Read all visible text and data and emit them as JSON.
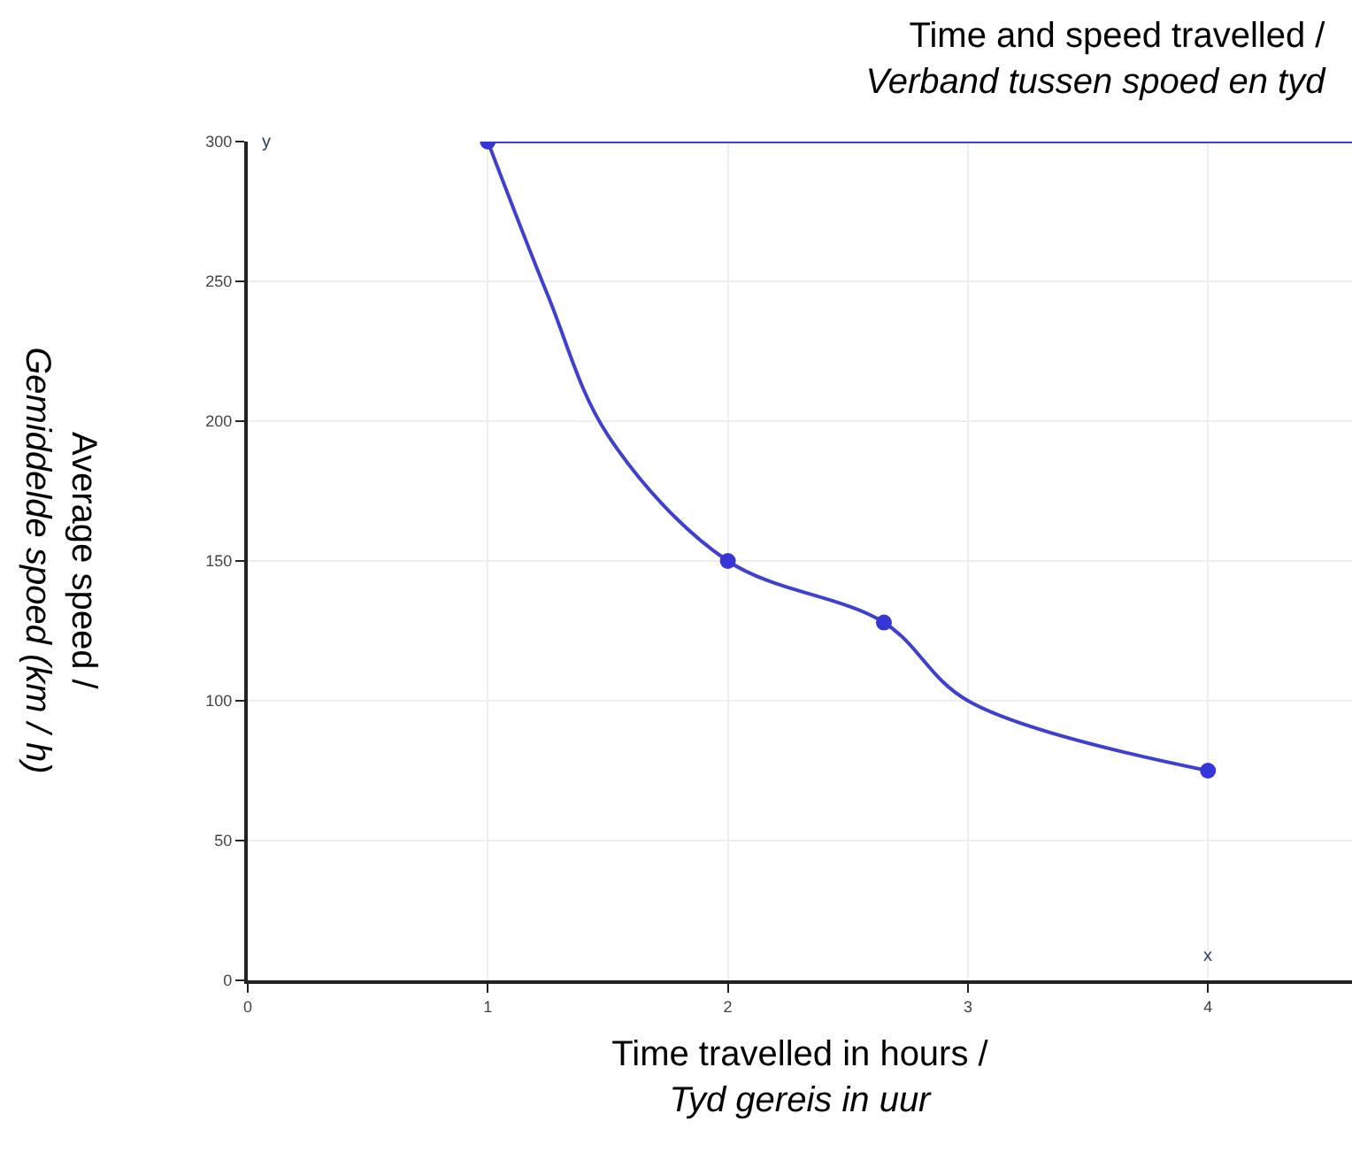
{
  "chart_data": {
    "type": "line",
    "title": "Time and speed travelled /\nVerband tussen spoed en tyd",
    "xlabel": "Time travelled in hours /\nTyd gereis in uur",
    "ylabel": "Average speed /\nGemiddelde spoed (km / h)",
    "series": [
      {
        "color": "#3f3fd0",
        "x": [
          1,
          4.6
        ],
        "values": [
          300,
          300
        ],
        "marker": "none"
      },
      {
        "color": "#3f3fd0",
        "x": [
          1,
          1.25,
          1.5,
          2,
          2.65,
          3,
          4
        ],
        "values": [
          300,
          245,
          195,
          150,
          128,
          100,
          75
        ],
        "marker": "none"
      },
      {
        "type": "scatter",
        "color": "#3535d8",
        "x": [
          1,
          2,
          2.65,
          4
        ],
        "values": [
          300,
          150,
          128,
          75
        ],
        "marker": "circle"
      }
    ],
    "annotations": [
      "x",
      "y"
    ],
    "xlim": [
      0,
      4.6
    ],
    "xticks": [
      0,
      1,
      2,
      3,
      4
    ],
    "ylim": [
      0,
      300
    ],
    "yticks": [
      0,
      50,
      100,
      150,
      200,
      250,
      300
    ],
    "grid": true,
    "legend": false
  }
}
